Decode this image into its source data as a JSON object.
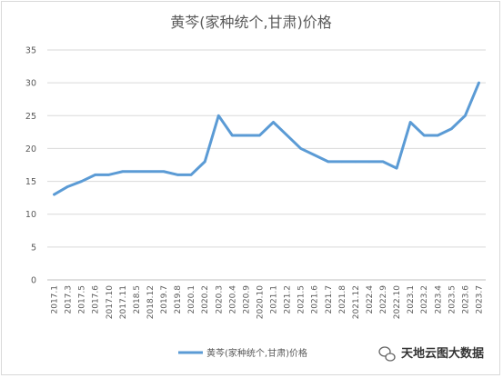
{
  "chart_data": {
    "type": "line",
    "title": "黄芩(家种统个,甘肃)价格",
    "xlabel": "",
    "ylabel": "",
    "ylim": [
      0,
      35
    ],
    "yticks": [
      0,
      5,
      10,
      15,
      20,
      25,
      30,
      35
    ],
    "grid": true,
    "legend_position": "bottom",
    "colors": {
      "series": "#5b9bd5",
      "grid": "#d9d9d9",
      "axis": "#bfbfbf"
    },
    "x": [
      "2017.1",
      "2017.3",
      "2017.5",
      "2017.6",
      "2017.10",
      "2017.11",
      "2018.5",
      "2018.12",
      "2019.7",
      "2019.8",
      "2020.1",
      "2020.2",
      "2020.3",
      "2020.4",
      "2020.9",
      "2020.10",
      "2021.1",
      "2021.2",
      "2021.5",
      "2021.6",
      "2021.7",
      "2021.8",
      "2021.12",
      "2022.4",
      "2022.9",
      "2022.10",
      "2023.1",
      "2023.2",
      "2023.4",
      "2023.5",
      "2023.6",
      "2023.7"
    ],
    "series": [
      {
        "name": "黄芩(家种统个,甘肃)价格",
        "values": [
          13,
          14.2,
          15,
          16,
          16,
          16.5,
          16.5,
          16.5,
          16.5,
          16,
          16,
          18,
          25,
          22,
          22,
          22,
          24,
          22,
          20,
          19,
          18,
          18,
          18,
          18,
          18,
          17,
          24,
          22,
          22,
          23,
          25,
          30
        ]
      }
    ]
  },
  "watermark": {
    "text": "天地云图大数据",
    "icon": "wechat-icon"
  }
}
